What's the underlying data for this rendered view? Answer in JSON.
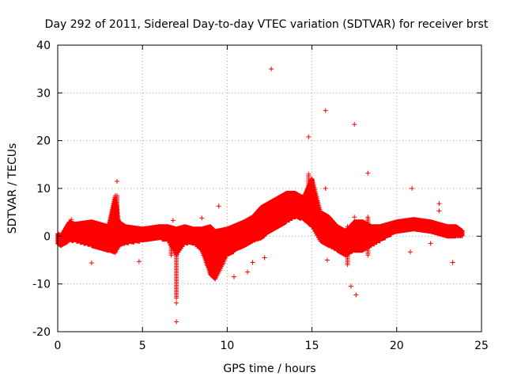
{
  "chart_data": {
    "type": "scatter",
    "title": "Day 292 of 2011, Sidereal Day-to-day VTEC variation (SDTVAR) for receiver brst",
    "xlabel": "GPS time / hours",
    "ylabel": "SDTVAR / TECUs",
    "xlim": [
      0,
      25
    ],
    "ylim": [
      -20,
      40
    ],
    "xticks": [
      0,
      5,
      10,
      15,
      20,
      25
    ],
    "yticks": [
      -20,
      -10,
      0,
      10,
      20,
      30,
      40
    ],
    "grid": true,
    "marker": "+",
    "color": "#ff0000",
    "band": {
      "x": [
        0.0,
        0.2,
        0.7,
        1.0,
        2.0,
        3.0,
        3.4,
        3.6,
        4.0,
        5.0,
        6.0,
        6.5,
        7.0,
        7.5,
        8.0,
        8.5,
        9.0,
        9.3,
        10.0,
        11.0,
        11.5,
        12.0,
        12.5,
        13.0,
        13.5,
        14.0,
        14.5,
        15.0,
        15.5,
        16.0,
        16.5,
        17.0,
        17.5,
        18.0,
        18.5,
        19.0,
        19.5,
        20.0,
        21.0,
        22.0,
        22.5,
        23.0,
        23.5,
        23.9
      ],
      "lower": [
        -1.5,
        -2.0,
        -1.0,
        -1.0,
        -2.0,
        -3.0,
        -3.5,
        -2.0,
        -1.5,
        -1.0,
        -0.5,
        -1.0,
        -4.0,
        -1.5,
        -1.5,
        -3.0,
        -8.0,
        -9.0,
        -4.0,
        -2.0,
        -1.0,
        -0.5,
        1.0,
        2.0,
        3.0,
        4.0,
        3.5,
        2.0,
        -1.0,
        -2.0,
        -3.0,
        -4.0,
        -3.0,
        -3.0,
        -2.0,
        -1.0,
        0.0,
        1.0,
        1.5,
        1.0,
        0.5,
        0.0,
        0.0,
        0.0
      ],
      "upper": [
        0.5,
        0.0,
        3.0,
        2.5,
        3.0,
        2.0,
        8.5,
        3.0,
        2.0,
        1.5,
        2.0,
        2.0,
        1.5,
        2.0,
        1.5,
        1.5,
        2.0,
        1.0,
        1.5,
        3.0,
        4.0,
        6.0,
        7.0,
        8.0,
        9.0,
        9.0,
        8.0,
        12.0,
        5.0,
        4.0,
        2.0,
        1.0,
        3.0,
        3.0,
        2.0,
        2.0,
        2.5,
        3.0,
        3.5,
        3.0,
        2.5,
        2.0,
        2.0,
        1.0
      ]
    },
    "outliers": [
      {
        "x": 12.6,
        "y": 35.0
      },
      {
        "x": 15.8,
        "y": 26.3
      },
      {
        "x": 17.5,
        "y": 23.4
      },
      {
        "x": 14.8,
        "y": 20.8
      },
      {
        "x": 18.3,
        "y": 13.2
      },
      {
        "x": 3.5,
        "y": 11.5
      },
      {
        "x": 15.8,
        "y": 10.0
      },
      {
        "x": 20.9,
        "y": 10.0
      },
      {
        "x": 9.5,
        "y": 6.3
      },
      {
        "x": 22.5,
        "y": 6.8
      },
      {
        "x": 22.5,
        "y": 5.3
      },
      {
        "x": 17.5,
        "y": 4.0
      },
      {
        "x": 8.5,
        "y": 3.8
      },
      {
        "x": 6.8,
        "y": 3.3
      },
      {
        "x": 0.8,
        "y": 3.5
      },
      {
        "x": 2.0,
        "y": -5.6
      },
      {
        "x": 4.8,
        "y": -5.3
      },
      {
        "x": 11.5,
        "y": -5.5
      },
      {
        "x": 15.9,
        "y": -5.0
      },
      {
        "x": 23.3,
        "y": -5.5
      },
      {
        "x": 20.8,
        "y": -3.3
      },
      {
        "x": 22.0,
        "y": -1.5
      },
      {
        "x": 10.4,
        "y": -8.5
      },
      {
        "x": 17.3,
        "y": -10.5
      },
      {
        "x": 17.6,
        "y": -12.3
      },
      {
        "x": 7.0,
        "y": -14.0
      },
      {
        "x": 7.0,
        "y": -17.9
      },
      {
        "x": 12.2,
        "y": -4.5
      },
      {
        "x": 11.2,
        "y": -7.5
      }
    ],
    "spikes": [
      {
        "x": 3.5,
        "from": 2.0,
        "to": 8.5
      },
      {
        "x": 7.0,
        "from": -13.0,
        "to": -2.0
      },
      {
        "x": 6.7,
        "from": -4.0,
        "to": 1.0
      },
      {
        "x": 14.8,
        "from": 4.0,
        "to": 13.0
      },
      {
        "x": 15.0,
        "from": 5.0,
        "to": 12.0
      },
      {
        "x": 17.1,
        "from": -6.0,
        "to": 2.0
      },
      {
        "x": 18.3,
        "from": -4.0,
        "to": 4.0
      }
    ]
  }
}
